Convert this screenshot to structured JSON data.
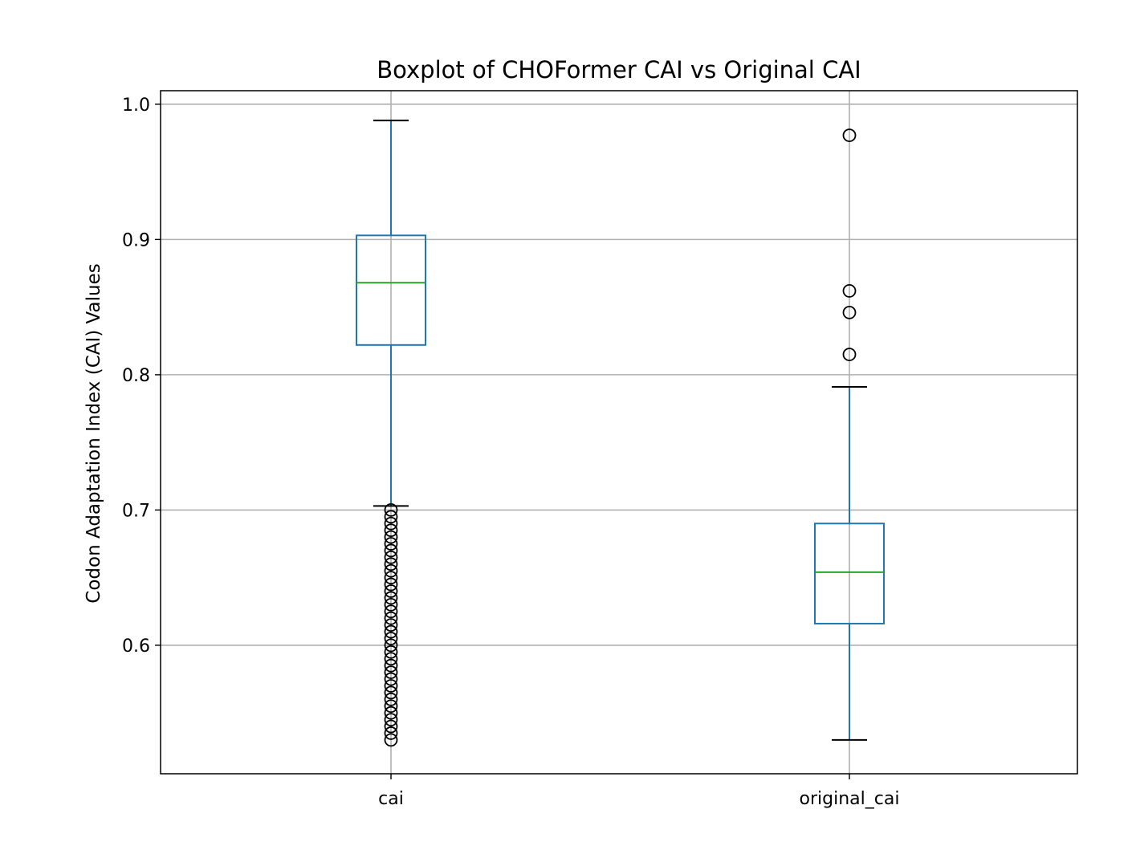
{
  "chart_data": {
    "type": "boxplot",
    "title": "Boxplot of CHOFormer CAI vs Original CAI",
    "xlabel": "",
    "ylabel": "Codon Adaptation Index (CAI) Values",
    "ylim": [
      0.505,
      1.01
    ],
    "yticks": [
      0.6,
      0.7,
      0.8,
      0.9,
      1.0
    ],
    "ytick_labels": [
      "0.6",
      "0.7",
      "0.8",
      "0.9",
      "1.0"
    ],
    "grid": true,
    "categories": [
      "cai",
      "original_cai"
    ],
    "boxes": [
      {
        "name": "cai",
        "whisker_low": 0.703,
        "q1": 0.822,
        "median": 0.868,
        "q3": 0.903,
        "whisker_high": 0.988,
        "outliers": [
          0.53,
          0.535,
          0.54,
          0.545,
          0.55,
          0.555,
          0.56,
          0.565,
          0.57,
          0.575,
          0.58,
          0.585,
          0.59,
          0.595,
          0.6,
          0.605,
          0.61,
          0.615,
          0.62,
          0.625,
          0.63,
          0.635,
          0.64,
          0.645,
          0.65,
          0.655,
          0.66,
          0.665,
          0.67,
          0.675,
          0.68,
          0.685,
          0.69,
          0.695,
          0.7
        ]
      },
      {
        "name": "original_cai",
        "whisker_low": 0.53,
        "q1": 0.616,
        "median": 0.654,
        "q3": 0.69,
        "whisker_high": 0.791,
        "outliers": [
          0.815,
          0.846,
          0.862,
          0.977
        ]
      }
    ],
    "colors": {
      "box": "#1f77b4",
      "median": "#2ca02c",
      "cap": "#000000",
      "grid": "#b0b0b0",
      "outlier_edge": "#000000"
    }
  }
}
